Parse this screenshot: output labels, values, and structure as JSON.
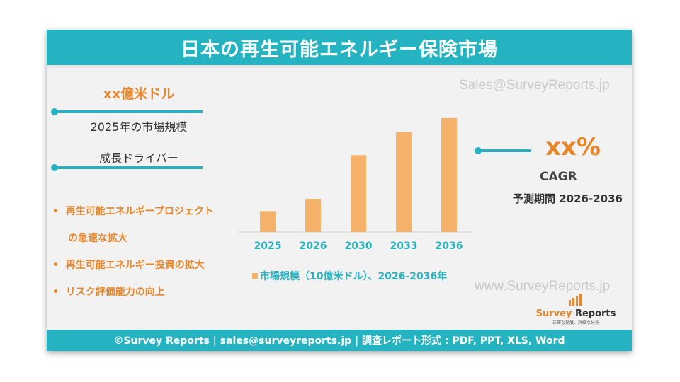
{
  "header": {
    "title": "日本の再生可能エネルギー保険市場"
  },
  "watermarks": {
    "top": "Sales@SurveyReports.jp",
    "bottom": "www.SurveyReports.jp"
  },
  "market_size": {
    "value": "xx億米ドル",
    "label": "2025年の市場規模"
  },
  "growth_drivers": {
    "heading": "成長ドライバー",
    "items": [
      "再生可能エネルギープロジェクト",
      "の急速な拡大",
      "再生可能エネルギー投資の拡大",
      "リスク評価能力の向上"
    ],
    "bullet": "•"
  },
  "cagr": {
    "value": "xx%",
    "label": "CAGR",
    "period": "予測期間 2026-2036"
  },
  "footer": {
    "text": "©Survey Reports | sales@surveyreports.jp |  調査レポート形式 : PDF, PPT, XLS, Word"
  },
  "logo": {
    "name_part1": "Survey",
    "name_part2": " Reports",
    "tagline": "正確な発展、詳細な分析"
  },
  "colors": {
    "accent": "#26b3c1",
    "bar": "#f6b26b",
    "highlight": "#e8862a"
  },
  "chart_data": {
    "type": "bar",
    "categories": [
      "2025",
      "2026",
      "2030",
      "2033",
      "2036"
    ],
    "values": [
      30,
      47,
      110,
      143,
      163
    ],
    "legend": "市場規模（10億米ドル）、2026-2036年",
    "ylim": [
      0,
      170
    ]
  }
}
